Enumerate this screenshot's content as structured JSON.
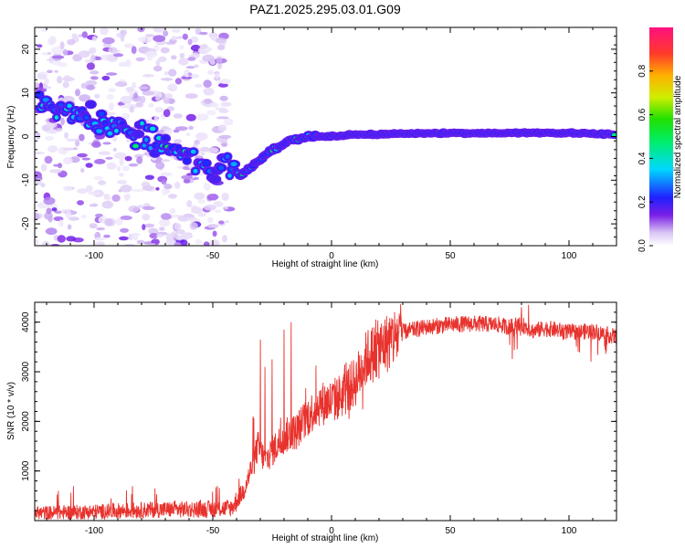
{
  "title": "PAZ1.2025.295.03.01.G09",
  "chart_data": [
    {
      "type": "heatmap",
      "xlabel": "Height of straight line (km)",
      "ylabel": "Frequency (Hz)",
      "xlim": [
        -125,
        120
      ],
      "ylim": [
        -25,
        25
      ],
      "xticks": [
        -100,
        -50,
        0,
        50,
        100
      ],
      "yticks": [
        -20,
        -10,
        0,
        10,
        20
      ],
      "ridge": {
        "x": [
          -122,
          -112,
          -100,
          -90,
          -80,
          -70,
          -60,
          -50,
          -44,
          -38,
          -34,
          -30,
          -25,
          -20,
          -15,
          -10,
          -5,
          0,
          10,
          20,
          40,
          60,
          80,
          100,
          120
        ],
        "y": [
          8,
          6,
          4,
          2,
          0,
          -2.5,
          -5,
          -8,
          -6,
          -9,
          -7,
          -5,
          -3,
          -1.5,
          -0.5,
          0,
          0,
          0,
          0.5,
          0.5,
          0.8,
          0.8,
          0.8,
          0.8,
          0.5
        ]
      }
    },
    {
      "type": "line",
      "xlabel": "Height of straight line (km)",
      "ylabel": "SNR (10 * v/v)",
      "xlim": [
        -125,
        120
      ],
      "ylim": [
        0,
        4400
      ],
      "xticks": [
        -100,
        -50,
        0,
        50,
        100
      ],
      "yticks": [
        1000,
        2000,
        3000,
        4000
      ],
      "color": "#e8322d",
      "series": [
        {
          "name": "SNR",
          "envelope_x": [
            -125,
            -100,
            -75,
            -50,
            -42,
            -37,
            -33,
            -31,
            -28,
            -25,
            -20,
            -15,
            -10,
            -5,
            0,
            5,
            10,
            15,
            20,
            25,
            30,
            40,
            50,
            60,
            70,
            75,
            80,
            85,
            90,
            100,
            110,
            120
          ],
          "envelope_y": [
            150,
            180,
            220,
            230,
            260,
            600,
            1150,
            1500,
            1200,
            1400,
            1700,
            1800,
            2100,
            2350,
            2400,
            2550,
            2800,
            3300,
            3450,
            3650,
            3800,
            3900,
            3950,
            3970,
            3950,
            3900,
            3950,
            3820,
            3880,
            3800,
            3820,
            3700
          ],
          "spikes": [
            {
              "x": -30,
              "y": 3650
            },
            {
              "x": -28,
              "y": 3100
            },
            {
              "x": -25,
              "y": 3250
            },
            {
              "x": -20,
              "y": 3850
            },
            {
              "x": -17,
              "y": 4000
            },
            {
              "x": 80,
              "y": 4300
            },
            {
              "x": 83,
              "y": 4350
            }
          ]
        }
      ]
    }
  ],
  "colorbar": {
    "label": "Normalized spectral amplitude",
    "ticks": [
      "0.0",
      "0.2",
      "0.4",
      "0.6",
      "0.8"
    ],
    "range": [
      0,
      1
    ]
  }
}
